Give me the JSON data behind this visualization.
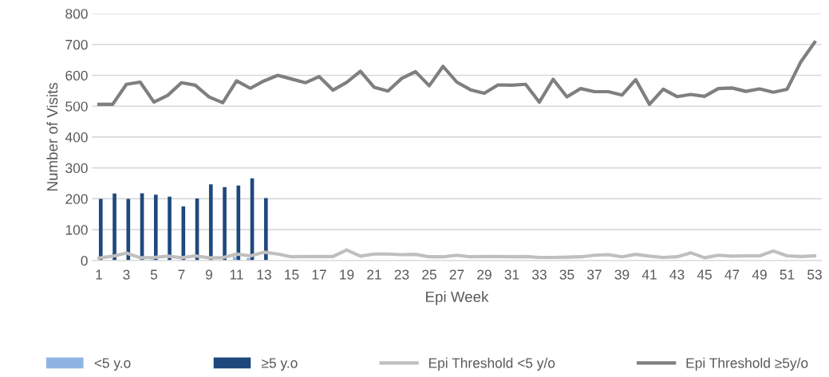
{
  "chart_data": {
    "type": "bar",
    "xlabel": "Epi Week",
    "ylabel": "Number of Visits",
    "categories": [
      "1",
      null,
      "3",
      null,
      "5",
      null,
      "7",
      null,
      "9",
      null,
      "11",
      null,
      "13",
      null,
      "15",
      null,
      "17",
      null,
      "19",
      null,
      "21",
      null,
      "23",
      null,
      "25",
      null,
      "27",
      null,
      "29",
      null,
      "31",
      null,
      "33",
      null,
      "35",
      null,
      "37",
      null,
      "39",
      null,
      "41",
      null,
      "43",
      null,
      "45",
      null,
      "47",
      null,
      "49",
      null,
      "51",
      null,
      "53"
    ],
    "ylim": [
      0,
      800
    ],
    "yticks": [
      0,
      100,
      200,
      300,
      400,
      500,
      600,
      700,
      800
    ],
    "grid": "y",
    "legend": "bottom",
    "marker": "none",
    "series": [
      {
        "name": "<5 y.o",
        "color": "#8eb4e3",
        "values": [
          null,
          1,
          null,
          1,
          4,
          null,
          1,
          1,
          null,
          1,
          12,
          8,
          1,
          null,
          null,
          null,
          null,
          null,
          null,
          null,
          null,
          null,
          null,
          null,
          null,
          null,
          null,
          null,
          null,
          null,
          null,
          null,
          null,
          null,
          null,
          null,
          null,
          null,
          null,
          null,
          null,
          null,
          null,
          null,
          null,
          null,
          null,
          null,
          null,
          null,
          null,
          null,
          null
        ]
      },
      {
        "name": "≥5 y.o",
        "color": "#1f497d",
        "values": [
          200,
          217,
          200,
          218,
          213,
          207,
          175,
          201,
          247,
          238,
          243,
          266,
          202,
          null,
          null,
          null,
          null,
          null,
          null,
          null,
          null,
          null,
          null,
          null,
          null,
          null,
          null,
          null,
          null,
          null,
          null,
          null,
          null,
          null,
          null,
          null,
          null,
          null,
          null,
          null,
          null,
          null,
          null,
          null,
          null,
          null,
          null,
          null,
          null,
          null,
          null,
          null,
          null
        ]
      },
      {
        "name": "Epi Threshold <5 y/o",
        "type": "line",
        "color": "#bfbfbf",
        "values": [
          8,
          14,
          24,
          9,
          10,
          14,
          9,
          15,
          9,
          9,
          21,
          15,
          27,
          21,
          12,
          13,
          13,
          13,
          34,
          14,
          21,
          21,
          19,
          20,
          12,
          12,
          17,
          12,
          13,
          13,
          12,
          13,
          10,
          10,
          11,
          12,
          17,
          19,
          12,
          20,
          14,
          10,
          12,
          25,
          9,
          17,
          14,
          15,
          15,
          31,
          15,
          13,
          15
        ]
      },
      {
        "name": "Epi Threshold ≥5y/o",
        "type": "line",
        "color": "#7f7f7f",
        "values": [
          506,
          506,
          571,
          578,
          513,
          535,
          576,
          568,
          530,
          511,
          582,
          558,
          582,
          600,
          588,
          576,
          596,
          552,
          577,
          613,
          561,
          549,
          590,
          612,
          566,
          629,
          578,
          553,
          542,
          569,
          568,
          571,
          513,
          587,
          530,
          557,
          547,
          547,
          536,
          586,
          506,
          555,
          531,
          538,
          532,
          557,
          559,
          548,
          556,
          545,
          555,
          644,
          707
        ]
      }
    ]
  }
}
